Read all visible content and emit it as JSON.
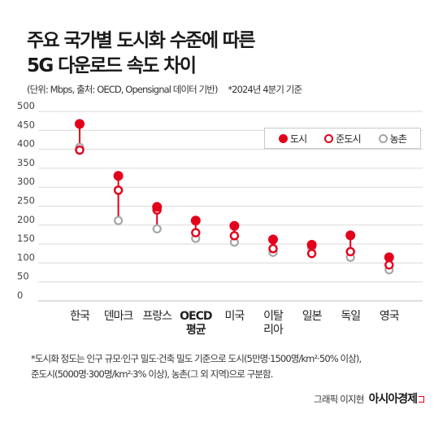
{
  "title_lines": [
    "주요 국가별 도시화 수준에 따른",
    "5G 다운로드 속도 차이"
  ],
  "unit_note": "(단위: Mbps, 출처: OECD, Opensignal 데이터 기반)",
  "date_note": "*2024년 4분기 기준",
  "footnote_lines": [
    "*도시화 정도는 인구 규모·인구 밀도·건축 밀도 기준으로 도시(5만명·1500명/km²·50% 이상),",
    "준도시(5000명·300명/km²·3% 이상), 농촌(그 외 지역)으로 구분함."
  ],
  "credit": {
    "author": "그래픽 이지현",
    "brand": "아시아경제"
  },
  "colors": {
    "city": "#e3001b",
    "suburban": "#e3001b",
    "rural": "#a6a6a6",
    "connector": "#e3001b",
    "grid": "#d9d9d9"
  },
  "chart_data": {
    "type": "scatter",
    "categories": [
      "한국",
      "덴마크",
      "프랑스",
      "OECD 평균",
      "미국",
      "이탈리아",
      "일본",
      "독일",
      "영국"
    ],
    "category_labels": [
      [
        "한국"
      ],
      [
        "덴마크"
      ],
      [
        "프랑스"
      ],
      [
        "OECD",
        "평균"
      ],
      [
        "미국"
      ],
      [
        "이탈",
        "리아"
      ],
      [
        "일본"
      ],
      [
        "독일"
      ],
      [
        "영국"
      ]
    ],
    "series": [
      {
        "name": "도시",
        "marker": "filled-circle",
        "values": [
          467,
          330,
          248,
          212,
          198,
          162,
          148,
          173,
          115
        ]
      },
      {
        "name": "준도시",
        "marker": "hollow-red-circle",
        "values": [
          398,
          292,
          240,
          180,
          172,
          138,
          125,
          130,
          95
        ]
      },
      {
        "name": "농촌",
        "marker": "hollow-gray-circle",
        "values": [
          405,
          212,
          190,
          165,
          155,
          128,
          140,
          115,
          82
        ]
      }
    ],
    "ylim": [
      0,
      500
    ],
    "yticks": [
      0,
      50,
      100,
      150,
      200,
      250,
      300,
      350,
      400,
      450,
      500
    ],
    "grid": true,
    "legend": "top-right"
  }
}
